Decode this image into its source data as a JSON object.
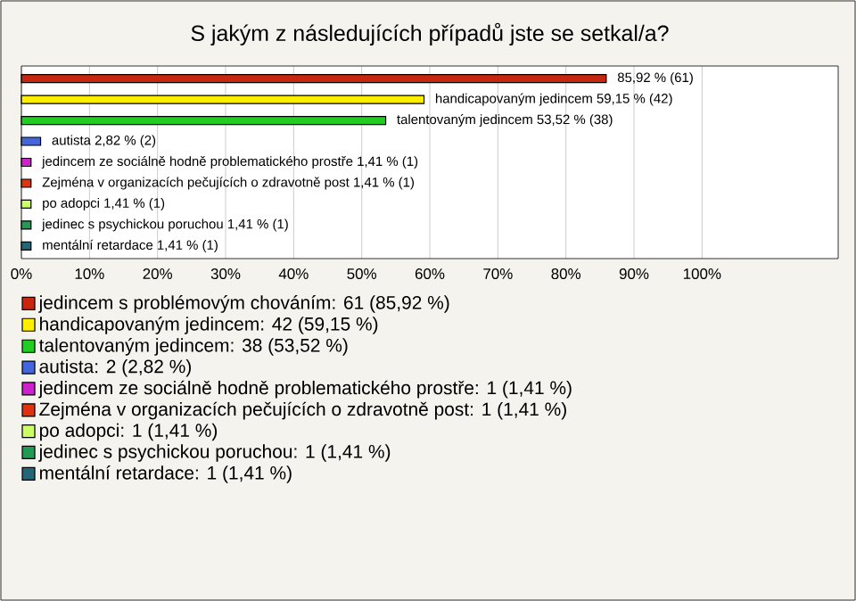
{
  "chart_data": {
    "type": "bar",
    "orientation": "horizontal",
    "title": "S jakým z následujících případů jste se setkal/a?",
    "categories": [
      null,
      null,
      null,
      null,
      null,
      null,
      null,
      null,
      null
    ],
    "series": [
      {
        "name": "jedincem s problémovým chováním: 61 (85,92 %)",
        "color": "#c8260f",
        "values": [
          85.92,
          null,
          null,
          null,
          null,
          null,
          null,
          null,
          null
        ],
        "value_labels": [
          "85,92 % (61)",
          null,
          null,
          null,
          null,
          null,
          null,
          null,
          null
        ]
      },
      {
        "name": "handicapovaným jedincem: 42 (59,15 %)",
        "color": "#ffee00",
        "values": [
          null,
          59.15,
          null,
          null,
          null,
          null,
          null,
          null,
          null
        ],
        "value_labels": [
          null,
          "handicapovaným jedincem 59,15 % (42)",
          null,
          null,
          null,
          null,
          null,
          null,
          null
        ]
      },
      {
        "name": "talentovaným jedincem: 38 (53,52 %)",
        "color": "#22cc22",
        "values": [
          null,
          null,
          53.52,
          null,
          null,
          null,
          null,
          null,
          null
        ],
        "value_labels": [
          null,
          null,
          "talentovaným jedincem 53,52 % (38)",
          null,
          null,
          null,
          null,
          null,
          null
        ]
      },
      {
        "name": "autista: 2 (2,82 %)",
        "color": "#4466dd",
        "values": [
          null,
          null,
          null,
          2.82,
          null,
          null,
          null,
          null,
          null
        ],
        "value_labels": [
          null,
          null,
          null,
          "autista 2,82 % (2)",
          null,
          null,
          null,
          null,
          null
        ]
      },
      {
        "name": "jedincem ze sociálně hodně problematického prostře: 1 (1,41 %)",
        "color": "#cc22cc",
        "values": [
          null,
          null,
          null,
          null,
          1.41,
          null,
          null,
          null,
          null
        ],
        "value_labels": [
          null,
          null,
          null,
          null,
          "jedincem ze sociálně hodně problematického prostře 1,41 % (1)",
          null,
          null,
          null,
          null
        ]
      },
      {
        "name": "Zejména v organizacích pečujících o zdravotně post: 1 (1,41 %)",
        "color": "#dd3311",
        "values": [
          null,
          null,
          null,
          null,
          null,
          1.41,
          null,
          null,
          null
        ],
        "value_labels": [
          null,
          null,
          null,
          null,
          null,
          "Zejména v organizacích pečujících o zdravotně post 1,41 % (1)",
          null,
          null,
          null
        ]
      },
      {
        "name": "po adopci: 1 (1,41 %)",
        "color": "#ccff66",
        "values": [
          null,
          null,
          null,
          null,
          null,
          null,
          1.41,
          null,
          null
        ],
        "value_labels": [
          null,
          null,
          null,
          null,
          null,
          null,
          "po adopci 1,41 % (1)",
          null,
          null
        ]
      },
      {
        "name": "jedinec s psychickou poruchou: 1 (1,41 %)",
        "color": "#229955",
        "values": [
          null,
          null,
          null,
          null,
          null,
          null,
          null,
          1.41,
          null
        ],
        "value_labels": [
          null,
          null,
          null,
          null,
          null,
          null,
          null,
          "jedinec s psychickou poruchou 1,41 % (1)",
          null
        ]
      },
      {
        "name": "mentální retardace: 1 (1,41 %)",
        "color": "#226677",
        "values": [
          null,
          null,
          null,
          null,
          null,
          null,
          null,
          null,
          1.41
        ],
        "value_labels": [
          null,
          null,
          null,
          null,
          null,
          null,
          null,
          null,
          "mentální retardace 1,41 % (1)"
        ]
      }
    ],
    "xlim": [
      0,
      120
    ],
    "xticks": [
      {
        "value": 0,
        "label": "0%"
      },
      {
        "value": 10,
        "label": "10%"
      },
      {
        "value": 20,
        "label": "20%"
      },
      {
        "value": 30,
        "label": "30%"
      },
      {
        "value": 40,
        "label": "40%"
      },
      {
        "value": 50,
        "label": "50%"
      },
      {
        "value": 60,
        "label": "60%"
      },
      {
        "value": 70,
        "label": "70%"
      },
      {
        "value": 80,
        "label": "80%"
      },
      {
        "value": 90,
        "label": "90%"
      },
      {
        "value": 100,
        "label": "100%"
      }
    ],
    "grid": "x",
    "legend": "bottom"
  }
}
